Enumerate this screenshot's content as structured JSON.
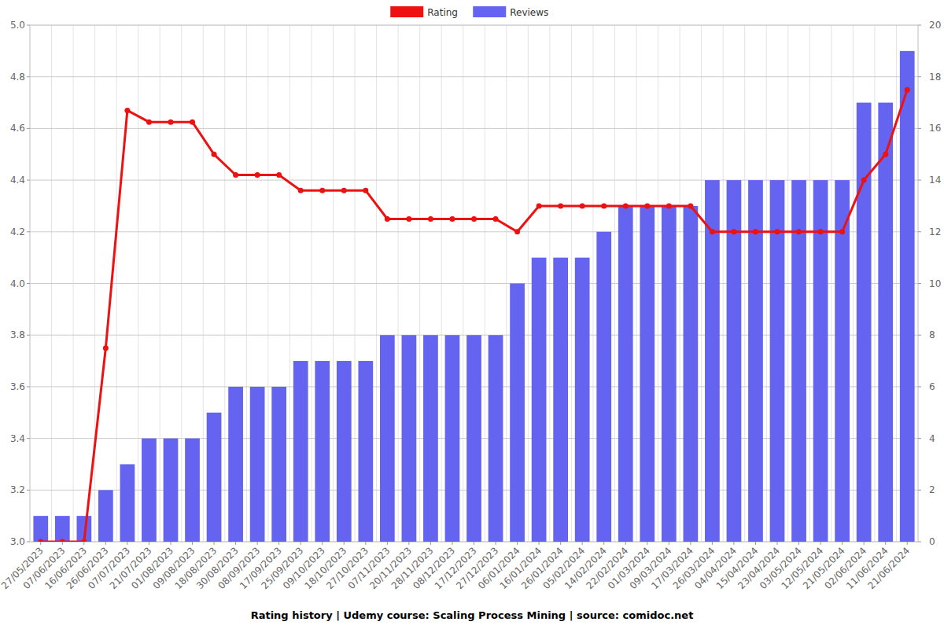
{
  "chart_data": {
    "type": "bar",
    "title": "Rating history | Udemy course: Scaling Process Mining | source: comidoc.net",
    "categories": [
      "27/05/2023",
      "07/06/2023",
      "16/06/2023",
      "26/06/2023",
      "07/07/2023",
      "21/07/2023",
      "01/08/2023",
      "09/08/2023",
      "18/08/2023",
      "30/08/2023",
      "08/09/2023",
      "17/09/2023",
      "25/09/2023",
      "09/10/2023",
      "18/10/2023",
      "27/10/2023",
      "07/11/2023",
      "20/11/2023",
      "28/11/2023",
      "08/12/2023",
      "17/12/2023",
      "27/12/2023",
      "06/01/2024",
      "16/01/2024",
      "26/01/2024",
      "05/02/2024",
      "14/02/2024",
      "22/02/2024",
      "01/03/2024",
      "09/03/2024",
      "17/03/2024",
      "26/03/2024",
      "04/04/2024",
      "15/04/2024",
      "23/04/2024",
      "03/05/2024",
      "12/05/2024",
      "21/05/2024",
      "02/06/2024",
      "11/06/2024",
      "21/06/2024"
    ],
    "series": [
      {
        "name": "Rating",
        "type": "line",
        "color": "#ee1111",
        "marker": "circle",
        "values": [
          3.0,
          3.0,
          3.0,
          3.75,
          4.67,
          4.625,
          4.625,
          4.625,
          4.5,
          4.42,
          4.42,
          4.42,
          4.36,
          4.36,
          4.36,
          4.36,
          4.25,
          4.25,
          4.25,
          4.25,
          4.25,
          4.25,
          4.2,
          4.3,
          4.3,
          4.3,
          4.3,
          4.3,
          4.3,
          4.3,
          4.3,
          4.2,
          4.2,
          4.2,
          4.2,
          4.2,
          4.2,
          4.2,
          4.4,
          4.5,
          4.75
        ]
      },
      {
        "name": "Reviews",
        "type": "bar",
        "axis": "y2",
        "color": "#6464f0",
        "values": [
          1,
          1,
          1,
          2,
          3,
          4,
          4,
          4,
          5,
          6,
          6,
          6,
          7,
          7,
          7,
          7,
          8,
          8,
          8,
          8,
          8,
          8,
          10,
          11,
          11,
          11,
          12,
          13,
          13,
          13,
          13,
          14,
          14,
          14,
          14,
          14,
          14,
          14,
          17,
          17,
          19
        ]
      }
    ],
    "ylim": [
      3,
      5
    ],
    "yticks": [
      {
        "value": 3,
        "label": "3.0"
      },
      3.2,
      3.4,
      3.6,
      3.8,
      {
        "value": 4,
        "label": "4.0"
      },
      4.2,
      4.4,
      4.6,
      4.8,
      {
        "value": 5,
        "label": "5.0"
      }
    ],
    "y2lim": [
      0,
      20
    ],
    "y2ticks": [
      0,
      2,
      4,
      6,
      8,
      10,
      12,
      14,
      16,
      18,
      20
    ],
    "grid": true,
    "legend": "top"
  }
}
